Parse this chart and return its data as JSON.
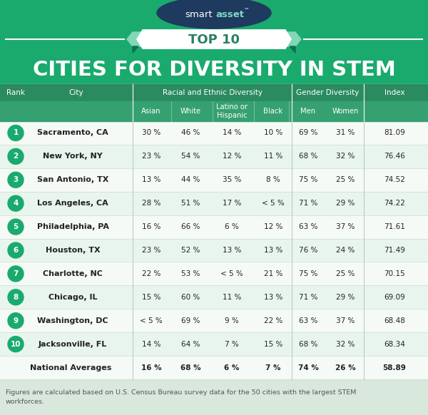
{
  "title_main": "CITIES FOR DIVERSITY IN STEM",
  "title_top": "TOP 10",
  "bg_color": "#1aaa6e",
  "teal_color": "#1aaa6e",
  "dark_teal": "#0d7050",
  "navy": "#1e3a5f",
  "banner_teal": "#80d8b8",
  "table_header_bg1": "#2a8a60",
  "table_header_bg2": "#35a070",
  "row_alt": "#e8f5ee",
  "row_white": "#f5faf7",
  "footer_bg": "#d8e8dc",
  "circle_color": "#1aaa6e",
  "rows": [
    {
      "rank": "1",
      "city": "Sacramento, CA",
      "asian": "30 %",
      "white": "46 %",
      "latino": "14 %",
      "black": "10 %",
      "men": "69 %",
      "women": "31 %",
      "index": "81.09"
    },
    {
      "rank": "2",
      "city": "New York, NY",
      "asian": "23 %",
      "white": "54 %",
      "latino": "12 %",
      "black": "11 %",
      "men": "68 %",
      "women": "32 %",
      "index": "76.46"
    },
    {
      "rank": "3",
      "city": "San Antonio, TX",
      "asian": "13 %",
      "white": "44 %",
      "latino": "35 %",
      "black": "8 %",
      "men": "75 %",
      "women": "25 %",
      "index": "74.52"
    },
    {
      "rank": "4",
      "city": "Los Angeles, CA",
      "asian": "28 %",
      "white": "51 %",
      "latino": "17 %",
      "black": "< 5 %",
      "men": "71 %",
      "women": "29 %",
      "index": "74.22"
    },
    {
      "rank": "5",
      "city": "Philadelphia, PA",
      "asian": "16 %",
      "white": "66 %",
      "latino": "6 %",
      "black": "12 %",
      "men": "63 %",
      "women": "37 %",
      "index": "71.61"
    },
    {
      "rank": "6",
      "city": "Houston, TX",
      "asian": "23 %",
      "white": "52 %",
      "latino": "13 %",
      "black": "13 %",
      "men": "76 %",
      "women": "24 %",
      "index": "71.49"
    },
    {
      "rank": "7",
      "city": "Charlotte, NC",
      "asian": "22 %",
      "white": "53 %",
      "latino": "< 5 %",
      "black": "21 %",
      "men": "75 %",
      "women": "25 %",
      "index": "70.15"
    },
    {
      "rank": "8",
      "city": "Chicago, IL",
      "asian": "15 %",
      "white": "60 %",
      "latino": "11 %",
      "black": "13 %",
      "men": "71 %",
      "women": "29 %",
      "index": "69.09"
    },
    {
      "rank": "9",
      "city": "Washington, DC",
      "asian": "< 5 %",
      "white": "69 %",
      "latino": "9 %",
      "black": "22 %",
      "men": "63 %",
      "women": "37 %",
      "index": "68.48"
    },
    {
      "rank": "10",
      "city": "Jacksonville, FL",
      "asian": "14 %",
      "white": "64 %",
      "latino": "7 %",
      "black": "15 %",
      "men": "68 %",
      "women": "32 %",
      "index": "68.34"
    },
    {
      "rank": "",
      "city": "National Averages",
      "asian": "16 %",
      "white": "68 %",
      "latino": "6 %",
      "black": "7 %",
      "men": "74 %",
      "women": "26 %",
      "index": "58.89"
    }
  ],
  "footer_text": "Figures are calculated based on U.S. Census Bureau survey data for the 50 cities with the largest STEM\nworkforces."
}
